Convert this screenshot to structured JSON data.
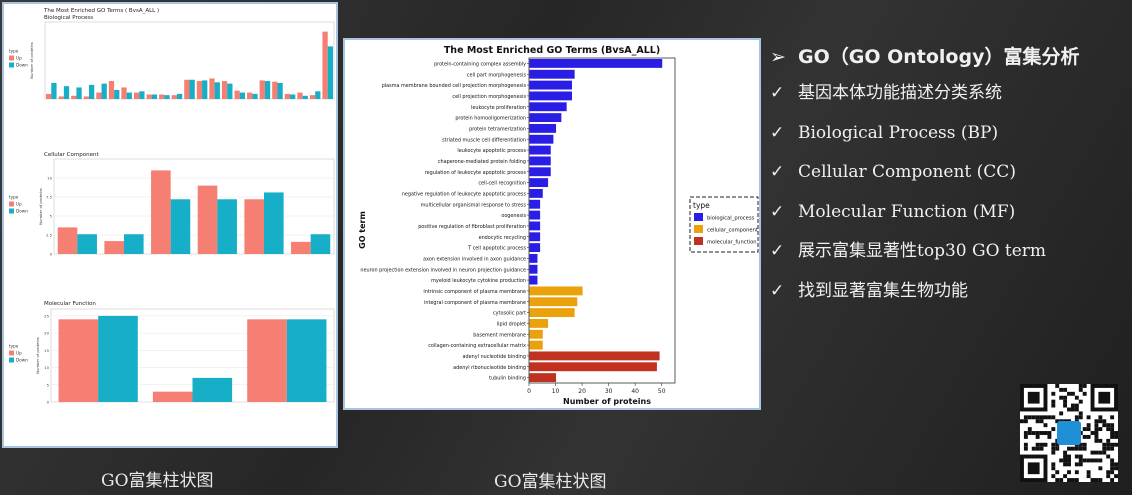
{
  "slide": {
    "caption_left": "GO富集柱状图",
    "caption_middle": "GO富集柱状图",
    "heading": "GO（GO Ontology）富集分析",
    "heading_marker": "➢",
    "bullet_marker": "✓",
    "bullets": [
      "基因本体功能描述分类系统",
      "Biological Process (BP)",
      "Cellular Component (CC)",
      "Molecular Function (MF)",
      "展示富集显著性top30 GO term",
      "找到显著富集生物功能"
    ],
    "qr_icon": "qr-code-icon",
    "colors": {
      "up": "#f47f72",
      "down": "#17aec7"
    }
  },
  "chart_data": [
    {
      "type": "bar",
      "orientation": "horizontal",
      "title": "The Most Enriched GO Terms (BvsA_ALL)",
      "xlabel": "Number of proteins",
      "ylabel": "GO term",
      "xlim": [
        0,
        55
      ],
      "xticks": [
        0,
        10,
        20,
        30,
        40,
        50
      ],
      "legend_title": "type",
      "legend_position": "right",
      "series_colors": {
        "biological_process": "#2a1ee6",
        "cellular_component": "#eba10c",
        "molecular_function": "#c0311f"
      },
      "legend": [
        "biological_process",
        "cellular_component",
        "molecular_function"
      ],
      "categories": [
        "protein-containing complex assembly",
        "cell part morphogenesis",
        "plasma membrane bounded cell projection morphogenesis",
        "cell projection morphogenesis",
        "leukocyte proliferation",
        "protein homooligomerization",
        "protein tetramerization",
        "striated muscle cell differentiation",
        "leukocyte apoptotic process",
        "chaperone-mediated protein folding",
        "regulation of leukocyte apoptotic process",
        "cell-cell recognition",
        "negative regulation of leukocyte apoptotic process",
        "multicellular organismal response to stress",
        "oogenesis",
        "positive regulation of fibroblast proliferation",
        "endocytic recycling",
        "T cell apoptotic process",
        "axon extension involved in axon guidance",
        "neuron projection extension involved in neuron projection guidance",
        "myeloid leukocyte cytokine production",
        "intrinsic component of plasma membrane",
        "integral component of plasma membrane",
        "cytosolic part",
        "lipid droplet",
        "basement membrane",
        "collagen-containing extracellular matrix",
        "adenyl nucleotide binding",
        "adenyl ribonucleotide binding",
        "tubulin binding"
      ],
      "values": [
        50,
        17,
        16,
        16,
        14,
        12,
        10,
        9,
        8,
        8,
        8,
        7,
        5,
        4,
        4,
        4,
        4,
        4,
        3,
        3,
        3,
        20,
        18,
        17,
        7,
        5,
        5,
        49,
        48,
        10
      ],
      "types": [
        "biological_process",
        "biological_process",
        "biological_process",
        "biological_process",
        "biological_process",
        "biological_process",
        "biological_process",
        "biological_process",
        "biological_process",
        "biological_process",
        "biological_process",
        "biological_process",
        "biological_process",
        "biological_process",
        "biological_process",
        "biological_process",
        "biological_process",
        "biological_process",
        "biological_process",
        "biological_process",
        "biological_process",
        "cellular_component",
        "cellular_component",
        "cellular_component",
        "cellular_component",
        "cellular_component",
        "cellular_component",
        "molecular_function",
        "molecular_function",
        "molecular_function"
      ]
    },
    {
      "type": "bar",
      "title": "The Most Enriched GO Terms ( BvsA_ALL )",
      "subtitle": "Biological Process",
      "ylabel": "Number of proteins",
      "legend_title": "type",
      "legend": [
        "Up",
        "Down"
      ],
      "legend_position": "left",
      "ylim": [
        0,
        12
      ],
      "series": [
        {
          "name": "Up",
          "values": [
            0.8,
            0.4,
            0.5,
            0.4,
            1.0,
            2.8,
            1.8,
            1.0,
            0.7,
            0.7,
            0.6,
            3.0,
            2.8,
            3.2,
            2.8,
            1.3,
            1.0,
            2.9,
            2.7,
            0.8,
            1.0,
            0.6,
            10.5
          ]
        },
        {
          "name": "Down",
          "values": [
            2.5,
            2.0,
            1.8,
            2.2,
            2.4,
            1.4,
            1.0,
            1.2,
            0.7,
            0.6,
            0.8,
            3.0,
            2.9,
            2.6,
            2.4,
            1.0,
            0.8,
            2.8,
            2.5,
            0.7,
            0.5,
            1.2,
            8.2
          ]
        }
      ]
    },
    {
      "type": "bar",
      "subtitle": "Cellular Component",
      "ylabel": "Number of proteins",
      "legend_title": "type",
      "legend": [
        "Up",
        "Down"
      ],
      "legend_position": "left",
      "ylim": [
        0,
        12.5
      ],
      "yticks": [
        0,
        2.5,
        5,
        7.5,
        10
      ],
      "series": [
        {
          "name": "Up",
          "values": [
            3.5,
            1.7,
            11.0,
            9.0,
            7.2,
            1.6
          ]
        },
        {
          "name": "Down",
          "values": [
            2.6,
            2.6,
            7.2,
            7.2,
            8.1,
            2.6
          ]
        }
      ]
    },
    {
      "type": "bar",
      "subtitle": "Molecular Function",
      "ylabel": "Number of proteins",
      "legend_title": "type",
      "legend": [
        "Up",
        "Down"
      ],
      "legend_position": "left",
      "ylim": [
        0,
        27
      ],
      "yticks": [
        0,
        5,
        10,
        15,
        20,
        25
      ],
      "series": [
        {
          "name": "Up",
          "values": [
            24,
            3,
            24
          ]
        },
        {
          "name": "Down",
          "values": [
            25,
            7,
            24
          ]
        }
      ]
    }
  ]
}
